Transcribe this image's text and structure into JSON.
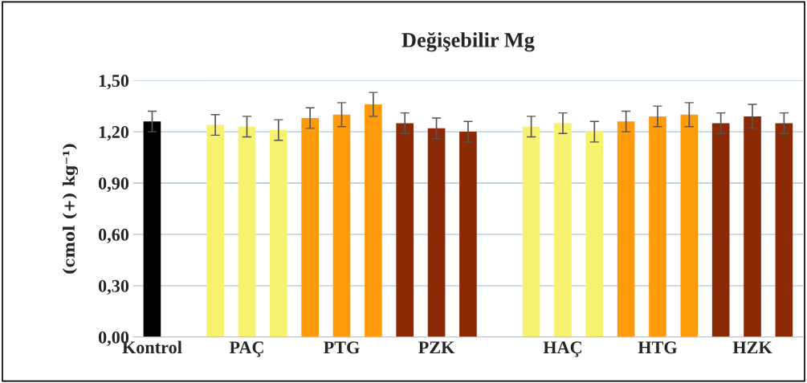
{
  "chart_data": {
    "type": "bar",
    "title": "Değişebilir Mg",
    "ylabel": "(cmol (+) kg⁻¹)",
    "categories": [
      "Kontrol",
      null,
      null,
      "PAÇ",
      null,
      null,
      "PTG",
      null,
      null,
      "PZK",
      null,
      null,
      null,
      "HAÇ",
      null,
      null,
      "HTG",
      null,
      null,
      "HZK",
      null
    ],
    "values": [
      1.26,
      null,
      1.24,
      1.23,
      1.21,
      1.28,
      1.3,
      1.36,
      1.25,
      1.22,
      1.2,
      null,
      1.23,
      1.25,
      1.2,
      1.26,
      1.29,
      1.3,
      1.25,
      1.29,
      1.25
    ],
    "errors": [
      0.06,
      null,
      0.06,
      0.06,
      0.06,
      0.06,
      0.07,
      0.07,
      0.06,
      0.06,
      0.06,
      null,
      0.06,
      0.06,
      0.06,
      0.06,
      0.06,
      0.07,
      0.06,
      0.07,
      0.06
    ],
    "colors": [
      "#000000",
      null,
      "#f7f26e",
      "#f7f26e",
      "#f7f26e",
      "#ff9a0a",
      "#ff9a0a",
      "#ff9a0a",
      "#8b2a05",
      "#8b2a05",
      "#8b2a05",
      null,
      "#f7f26e",
      "#f7f26e",
      "#f7f26e",
      "#ff9a0a",
      "#ff9a0a",
      "#ff9a0a",
      "#8b2a05",
      "#8b2a05",
      "#8b2a05"
    ],
    "ylim": [
      0,
      1.5
    ],
    "yticks": [
      {
        "value": 0,
        "label": "0,00"
      },
      {
        "value": 0.3,
        "label": "0,30"
      },
      {
        "value": 0.6,
        "label": "0,60"
      },
      {
        "value": 0.9,
        "label": "0,90"
      },
      {
        "value": 1.2,
        "label": "1,20"
      },
      {
        "value": 1.5,
        "label": "1,50"
      }
    ],
    "grid": "y",
    "legend": false
  }
}
